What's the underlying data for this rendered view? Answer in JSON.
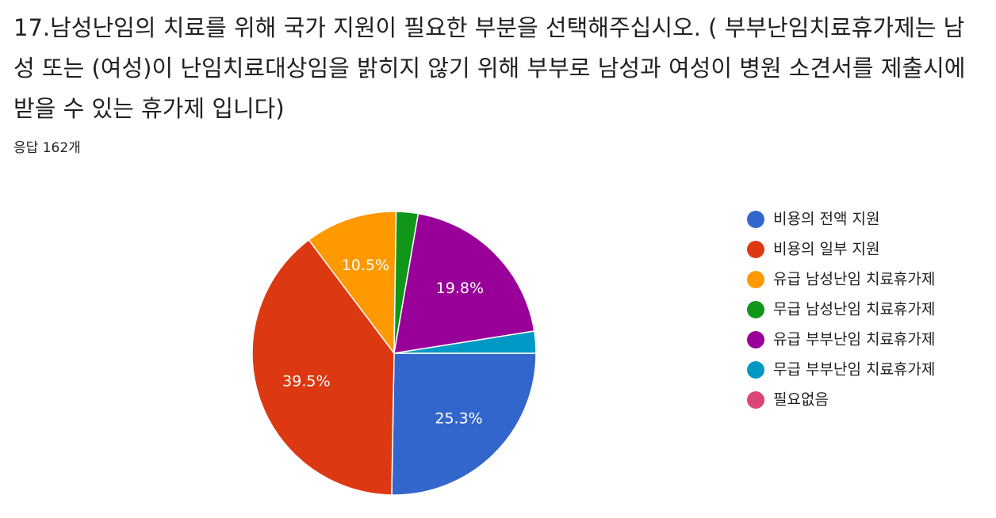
{
  "chart_data": {
    "type": "pie",
    "title": "17.남성난임의 치료를 위해 국가 지원이 필요한 부분을 선택해주십시오. ( 부부난임치료휴가제는 남성 또는 (여성)이 난임치료대상임을 밝히지 않기 위해 부부로 남성과 여성이 병원 소견서를 제출시에 받을 수 있는 휴가제 입니다)",
    "subtitle": "응답 162개",
    "categories": [
      "비용의 전액 지원",
      "비용의 일부 지원",
      "유급 남성난임 치료휴가제",
      "무급 남성난임 치료휴가제",
      "유급 부부난임 치료휴가제",
      "무급 부부난임 치료휴가제",
      "필요없음"
    ],
    "values": [
      25.3,
      39.5,
      10.5,
      2.5,
      19.8,
      2.5,
      0
    ],
    "value_labels": [
      "25.3%",
      "39.5%",
      "10.5%",
      null,
      "19.8%",
      null,
      null
    ],
    "colors": [
      "#3366cc",
      "#dc3912",
      "#ff9900",
      "#109618",
      "#990099",
      "#0099c6",
      "#dd4477"
    ],
    "legend": "right"
  }
}
